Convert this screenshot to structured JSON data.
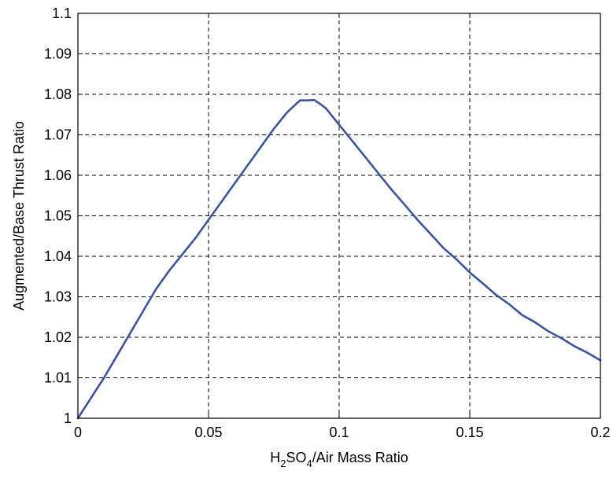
{
  "chart_data": {
    "type": "line",
    "title": "",
    "xlabel": {
      "parts": [
        {
          "text": "H",
          "style": "normal"
        },
        {
          "text": "2",
          "style": "sub"
        },
        {
          "text": "SO",
          "style": "normal"
        },
        {
          "text": "4",
          "style": "sub"
        },
        {
          "text": "/Air Mass Ratio",
          "style": "normal"
        }
      ]
    },
    "ylabel": "Augmented/Base Thrust Ratio",
    "xlim": [
      0,
      0.2
    ],
    "ylim": [
      1,
      1.1
    ],
    "xticks": [
      0,
      0.05,
      0.1,
      0.15,
      0.2
    ],
    "xtick_labels": [
      "0",
      "0.05",
      "0.1",
      "0.15",
      "0.2"
    ],
    "yticks": [
      1,
      1.01,
      1.02,
      1.03,
      1.04,
      1.05,
      1.06,
      1.07,
      1.08,
      1.09,
      1.1
    ],
    "ytick_labels": [
      "1",
      "1.01",
      "1.02",
      "1.03",
      "1.04",
      "1.05",
      "1.06",
      "1.07",
      "1.08",
      "1.09",
      "1.1"
    ],
    "grid": true,
    "line_color": "#3a53a4",
    "series": [
      {
        "x": [
          0,
          0.002,
          0.005,
          0.01,
          0.015,
          0.02,
          0.025,
          0.03,
          0.035,
          0.04,
          0.045,
          0.05,
          0.055,
          0.06,
          0.065,
          0.07,
          0.075,
          0.08,
          0.085,
          0.088,
          0.0905,
          0.093,
          0.095,
          0.1,
          0.105,
          0.11,
          0.115,
          0.12,
          0.125,
          0.13,
          0.135,
          0.14,
          0.145,
          0.15,
          0.155,
          0.16,
          0.165,
          0.17,
          0.175,
          0.18,
          0.185,
          0.19,
          0.195,
          0.2
        ],
        "y": [
          1.0,
          1.002,
          1.005,
          1.01,
          1.0155,
          1.021,
          1.0265,
          1.032,
          1.0365,
          1.0405,
          1.0445,
          1.049,
          1.0535,
          1.058,
          1.0625,
          1.067,
          1.0715,
          1.0755,
          1.0785,
          1.0785,
          1.0786,
          1.0775,
          1.0765,
          1.0725,
          1.0685,
          1.0645,
          1.0605,
          1.0565,
          1.0528,
          1.049,
          1.0455,
          1.042,
          1.0392,
          1.036,
          1.0333,
          1.0305,
          1.0282,
          1.0255,
          1.0237,
          1.0215,
          1.0198,
          1.0178,
          1.0162,
          1.0143
        ]
      }
    ]
  }
}
